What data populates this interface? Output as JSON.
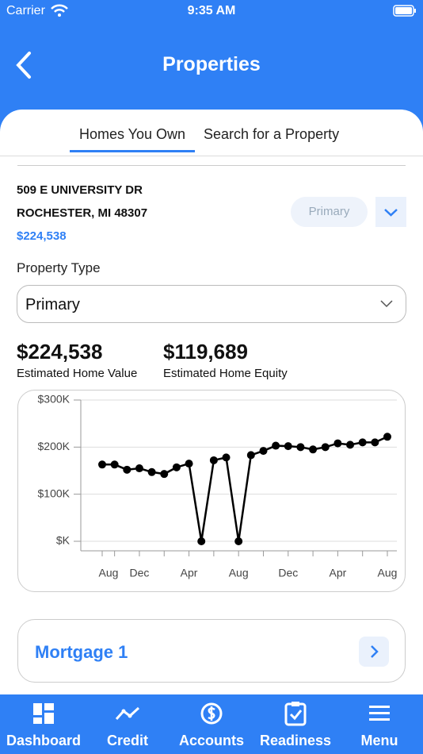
{
  "status_bar": {
    "carrier": "Carrier",
    "time": "9:35 AM"
  },
  "header": {
    "title": "Properties"
  },
  "tabs": [
    "Homes You Own",
    "Search for a Property"
  ],
  "property": {
    "address_line1": "509 E UNIVERSITY DR",
    "address_line2": "ROCHESTER, MI 48307",
    "value": "$224,538",
    "badge": "Primary"
  },
  "property_type": {
    "label": "Property Type",
    "selected": "Primary"
  },
  "stats": [
    {
      "value": "$224,538",
      "label": "Estimated Home Value"
    },
    {
      "value": "$119,689",
      "label": "Estimated Home Equity"
    }
  ],
  "chart_data": {
    "type": "line",
    "categories": [
      "Aug",
      null,
      null,
      "Dec",
      null,
      null,
      null,
      "Apr",
      null,
      null,
      null,
      "Aug",
      null,
      null,
      null,
      "Dec",
      null,
      null,
      null,
      "Apr",
      null,
      null,
      null,
      "Aug"
    ],
    "values": [
      163000,
      163000,
      152000,
      155000,
      147000,
      143000,
      157000,
      165000,
      0,
      172000,
      178000,
      0,
      183000,
      192000,
      203000,
      202000,
      200000,
      195000,
      200000,
      208000,
      205000,
      210000,
      210000,
      222000
    ],
    "color": "#000000",
    "ylim": [
      0,
      300000
    ],
    "yticks": [
      {
        "value": 0,
        "label": "$K"
      },
      {
        "value": 100000,
        "label": "$100K"
      },
      {
        "value": 200000,
        "label": "$200K"
      },
      {
        "value": 300000,
        "label": "$300K"
      }
    ],
    "grid": true
  },
  "mortgage": {
    "title": "Mortgage 1"
  },
  "tab_bar": [
    "Dashboard",
    "Credit",
    "Accounts",
    "Readiness",
    "Menu"
  ]
}
